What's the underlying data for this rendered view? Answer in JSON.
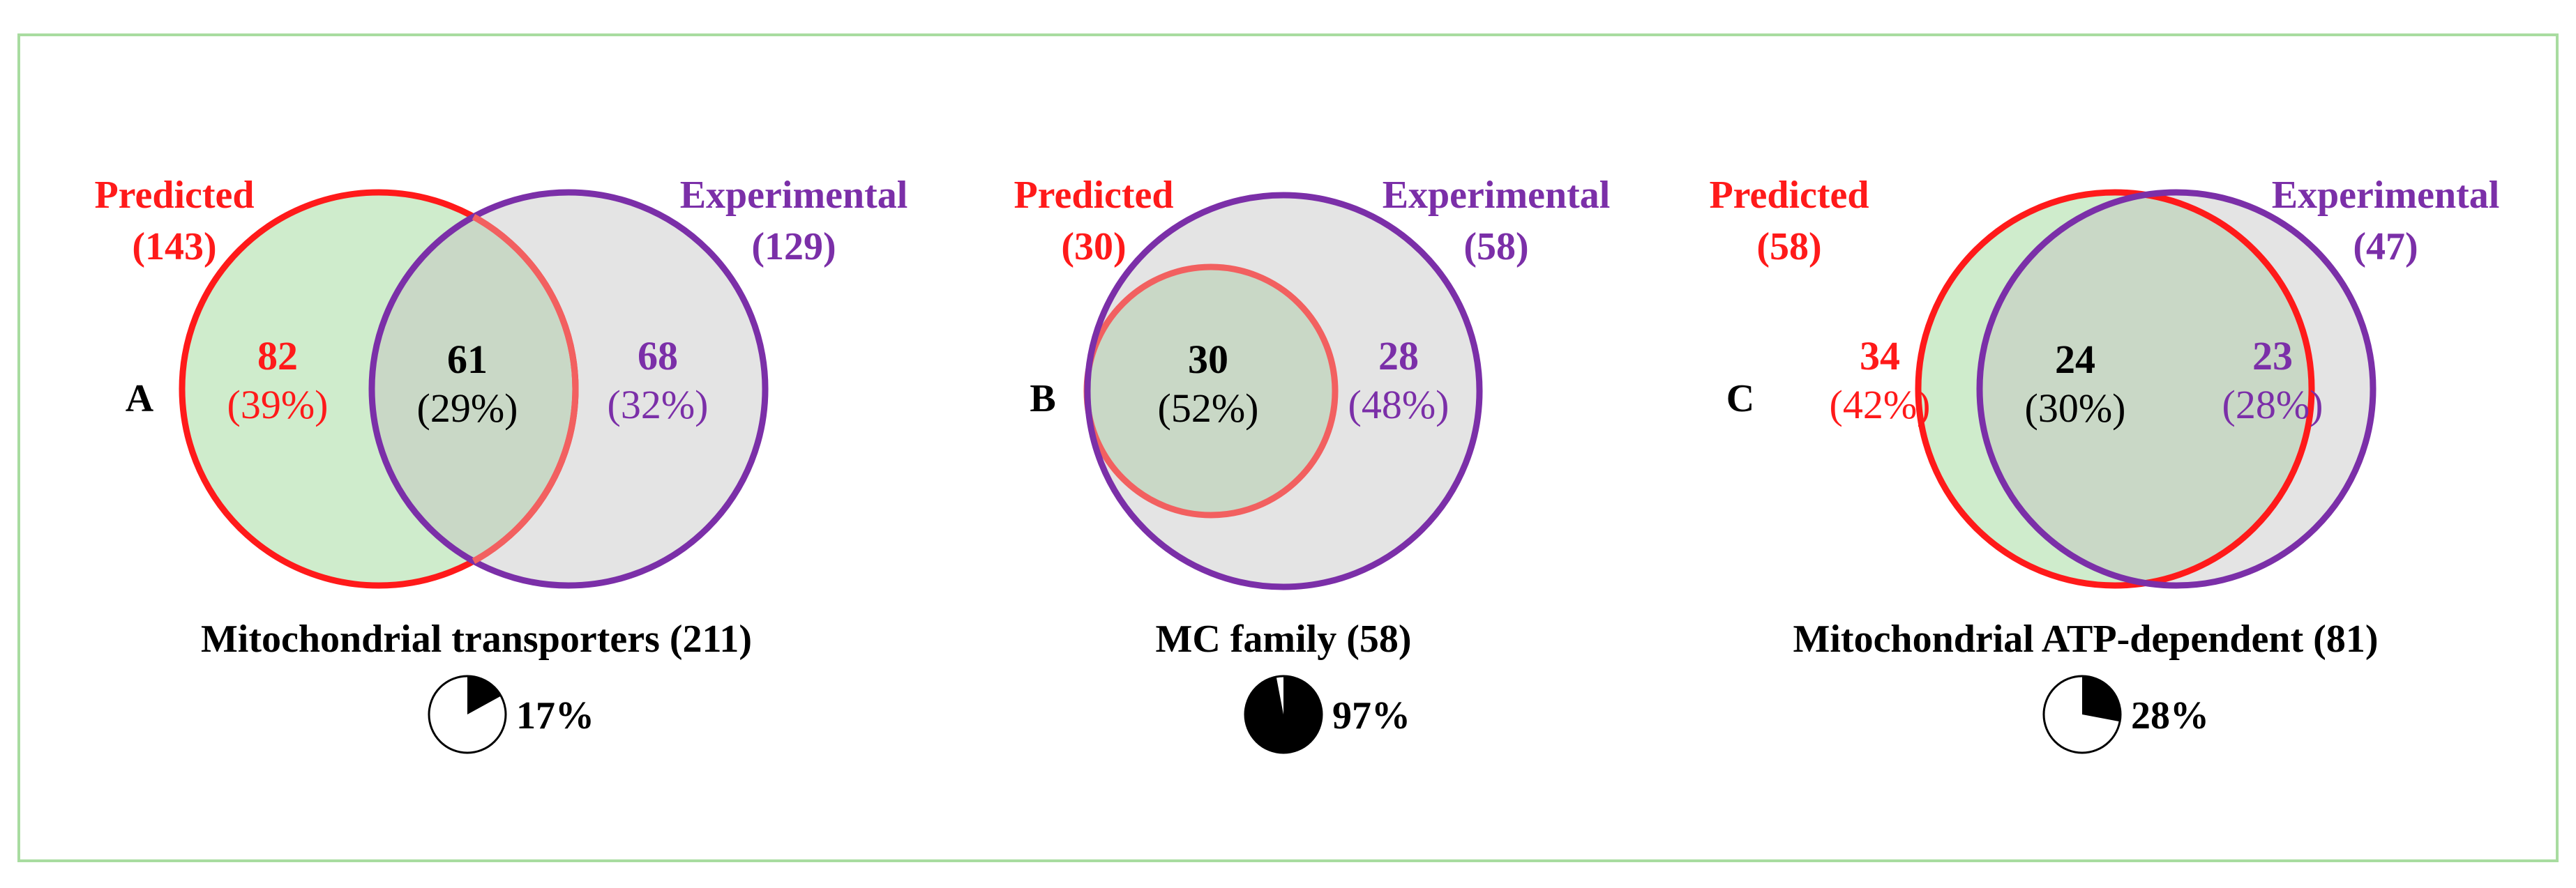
{
  "colors": {
    "predicted": "#ff1a1a",
    "predicted_inner": "#f26060",
    "experimental": "#7b2fa8",
    "predicted_fill": "#cfeccc",
    "experimental_fill": "#e4e4e4",
    "overlap_fill": "#c9d8c6",
    "frame": "#a8dca0",
    "text": "#000000"
  },
  "panels": [
    {
      "letter": "A",
      "predicted_label": "Predicted",
      "predicted_count": "(143)",
      "experimental_label": "Experimental",
      "experimental_count": "(129)",
      "left_only_value": "82",
      "left_only_pct": "(39%)",
      "overlap_value": "61",
      "overlap_pct": "(29%)",
      "right_only_value": "68",
      "right_only_pct": "(32%)",
      "title": "Mitochondrial transporters (211)",
      "pie_fraction": 0.17,
      "pie_label": "17%"
    },
    {
      "letter": "B",
      "predicted_label": "Predicted",
      "predicted_count": "(30)",
      "experimental_label": "Experimental",
      "experimental_count": "(58)",
      "overlap_value": "30",
      "overlap_pct": "(52%)",
      "right_only_value": "28",
      "right_only_pct": "(48%)",
      "title": "MC family (58)",
      "pie_fraction": 0.97,
      "pie_label": "97%"
    },
    {
      "letter": "C",
      "predicted_label": "Predicted",
      "predicted_count": "(58)",
      "experimental_label": "Experimental",
      "experimental_count": "(47)",
      "left_only_value": "34",
      "left_only_pct": "(42%)",
      "overlap_value": "24",
      "overlap_pct": "(30%)",
      "right_only_value": "23",
      "right_only_pct": "(28%)",
      "title": "Mitochondrial ATP-dependent (81)",
      "pie_fraction": 0.28,
      "pie_label": "28%"
    }
  ]
}
